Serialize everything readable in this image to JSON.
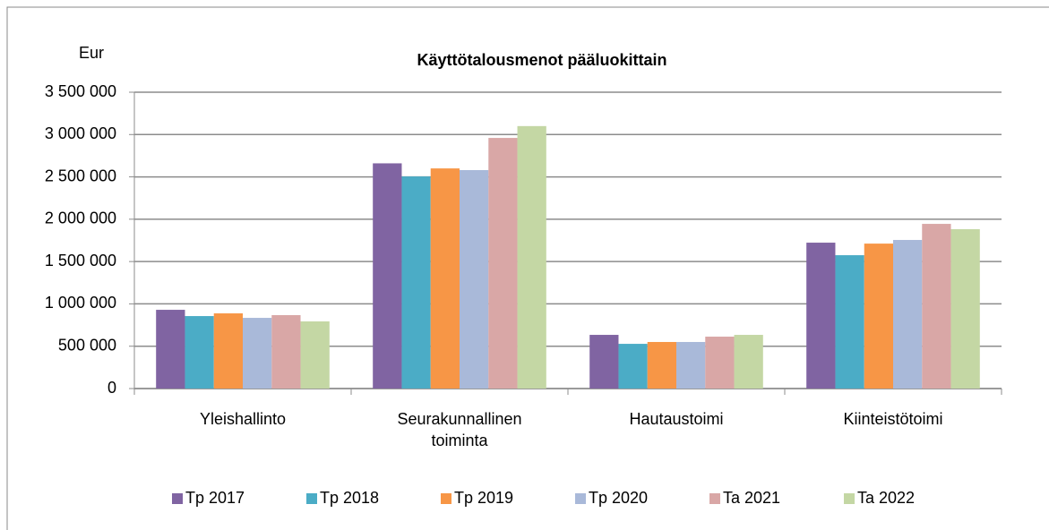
{
  "chart_data": {
    "type": "bar",
    "title": "Käyttötalousmenot pääluokittain",
    "y_label": "Eur",
    "categories": [
      "Yleishallinto",
      "Seurakunnallinen toiminta",
      "Hautaustoimi",
      "Kiinteistötoimi"
    ],
    "series": [
      {
        "name": "Tp 2017",
        "color": "#8064a2",
        "values": [
          930000,
          2660000,
          634000,
          1723000
        ]
      },
      {
        "name": "Tp 2018",
        "color": "#4bacc6",
        "values": [
          856000,
          2505000,
          528000,
          1575000
        ]
      },
      {
        "name": "Tp 2019",
        "color": "#f79646",
        "values": [
          888000,
          2600000,
          550000,
          1712000
        ]
      },
      {
        "name": "Tp 2020",
        "color": "#a9b9d9",
        "values": [
          835000,
          2580000,
          550000,
          1755000
        ]
      },
      {
        "name": "Ta 2021",
        "color": "#d9a7a6",
        "values": [
          867000,
          2960000,
          613000,
          1945000
        ]
      },
      {
        "name": "Ta 2022",
        "color": "#c4d7a4",
        "values": [
          793000,
          3100000,
          634000,
          1882000
        ]
      }
    ],
    "ylim": [
      0,
      3500000
    ],
    "yticks": [
      0,
      {
        "value": 500000,
        "label": "500 000"
      },
      {
        "value": 1000000,
        "label": "1 000 000"
      },
      {
        "value": 1500000,
        "label": "1 500 000"
      },
      {
        "value": 2000000,
        "label": "2 000 000"
      },
      {
        "value": 2500000,
        "label": "2 500 000"
      },
      {
        "value": 3000000,
        "label": "3 000 000"
      },
      {
        "value": 3500000,
        "label": "3 500 000"
      }
    ],
    "grid": true,
    "legend": "bottom"
  }
}
